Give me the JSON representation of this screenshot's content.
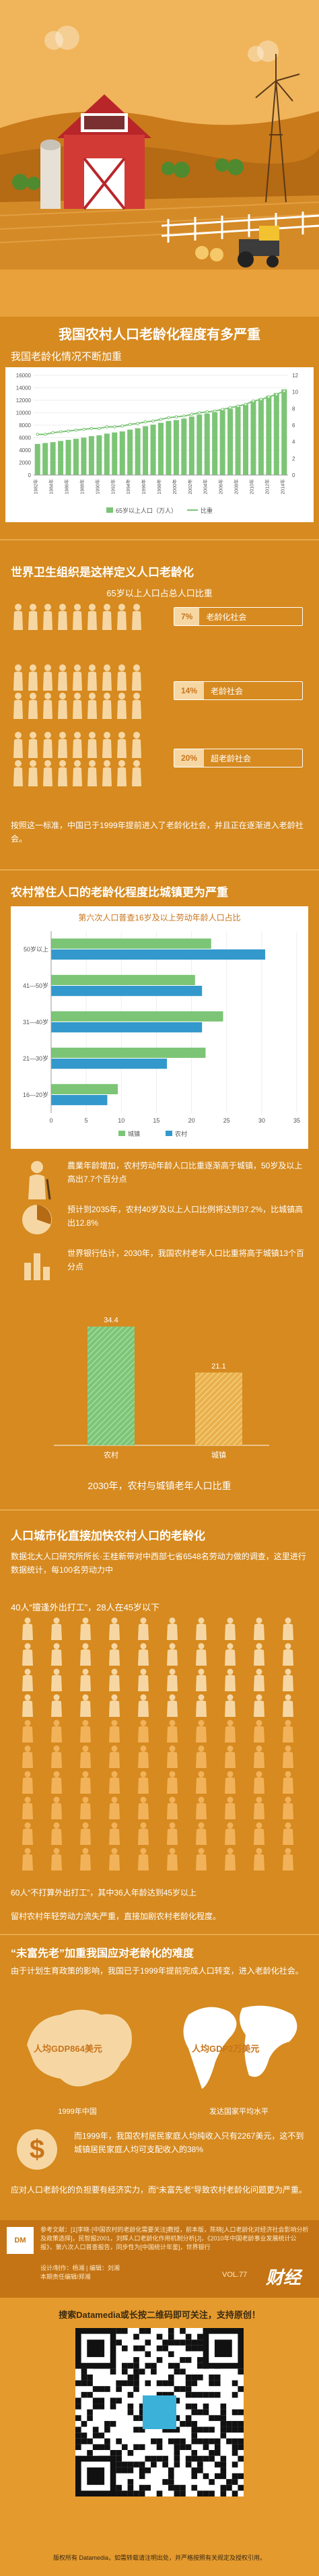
{
  "header": {
    "title": "我国农村人口老龄化程度有多严重"
  },
  "chart1": {
    "subtitle": "我国老龄化情况不断加重"
  },
  "who": {
    "title": "世界卫生组织是这样定义人口老龄化",
    "subtitle": "65岁以上人口占总人口比重",
    "levels": [
      {
        "pct": "7%",
        "label": "老龄化社会"
      },
      {
        "pct": "14%",
        "label": "老龄社会"
      },
      {
        "pct": "20%",
        "label": "超老龄社会"
      }
    ],
    "note": "按照这一标准，中国已于1999年提前进入了老龄化社会，并且正在逐渐进入老龄社会。"
  },
  "rural": {
    "title": "农村常住人口的老龄化程度比城镇更为严重",
    "chart_subtitle": "第六次人口普查16岁及以上劳动年龄人口占比",
    "stat1": "農業年龄增加，农村劳动年龄人口比重逐渐高于城镇，50岁及以上高出7.7个百分点",
    "stat2": "预计到2035年，农村40岁及以上人口比例将达到37.2%，比城镇高出12.8%",
    "stat3": "世界银行估计，2030年，我国农村老年人口比重将高于城镇13个百分点",
    "chart3_caption": "2030年，农村与城镇老年人口比重"
  },
  "migrant": {
    "title": "人口城市化直接加快农村人口的老龄化",
    "text": "数据北大人口研究所所长·王桂新带对中西部七省6548名劳动力做的调查，这里进行数据统计，每100名劳动力中",
    "line1": "40人“擅逢外出打工”，28人在45岁以下",
    "line2": "60人“不打算外出打工”，其中36人年龄达到45岁以上",
    "line3": "留村农村年轻劳动力流失严重，直接加剧农村老龄化程度。"
  },
  "gdp": {
    "title": "“未富先老”加重我国应对老龄化的难度",
    "text": "由于计划生育政策的影响，我国已于1999年提前完成人口转变，进入老龄化社会。",
    "left_label": "人均GDP864美元",
    "right_label": "人均GDP2万美元",
    "left_caption": "1999年中国",
    "right_caption": "发达国家平均水平",
    "stat": "而1999年，我国农村居民家庭人均纯收入只有2267美元，这不到城镇居民家庭人均可支配收入的38%",
    "conclusion": "应对人口老龄化的负担要有经济实力，而“未富先老”导致农村老龄化问题更为严重。"
  },
  "footer": {
    "source": "参考文献：[1]李晓·[中国农村的老龄化需要关注]教授，前本版，陈晓[人口老龄化对经济社会影响分析及政策选择]，民智报2001，刘辉人口老龄化作用机制分析[J]，《2010年中国老龄事业发展统计公报》，第六次人口普查报告，同步性为[中国统计年鉴]，世界银行",
    "credits": "设计/制作：杨湘 | 编辑：刘湘\n本期责任编辑/郑湘",
    "brand": "财经",
    "tag": "VOL.77",
    "qr_caption": "搜索Datamedia或长按二维码即可关注，支持原创！",
    "copyright": "版权所有 Datamedia，如需转载请注明出处，并严格按照有关规定及授权引用。"
  },
  "colors": {
    "background": "#d68a1f",
    "green": "#7cc576",
    "blue": "#3399cc",
    "cream": "#f6d7a4"
  },
  "chart_data": [
    {
      "type": "bar",
      "title": "",
      "categories": [
        "1982年",
        "1984年",
        "1986年",
        "1988年",
        "1990年",
        "1992年",
        "1994年",
        "1996年",
        "1998年",
        "2000年",
        "2002年",
        "2004年",
        "2006年",
        "2008年",
        "2010年",
        "2012年",
        "2014年"
      ],
      "x": [
        "1982",
        "1983",
        "1984",
        "1985",
        "1986",
        "1987",
        "1988",
        "1989",
        "1990",
        "1991",
        "1992",
        "1993",
        "1994",
        "1995",
        "1996",
        "1997",
        "1998",
        "1999",
        "2000",
        "2001",
        "2002",
        "2003",
        "2004",
        "2005",
        "2006",
        "2007",
        "2008",
        "2009",
        "2010",
        "2011",
        "2012",
        "2013",
        "2014"
      ],
      "series": [
        {
          "name": "65岁以上人口（万人）",
          "type": "bar",
          "axis": "left",
          "values": [
            4991,
            5140,
            5276,
            5464,
            5641,
            5817,
            6004,
            6240,
            6368,
            6647,
            6833,
            6997,
            7291,
            7510,
            7833,
            8085,
            8376,
            8679,
            8821,
            9062,
            9377,
            9692,
            9857,
            10055,
            10419,
            10636,
            10956,
            11307,
            11894,
            12288,
            12714,
            13161,
            13755
          ]
        },
        {
          "name": "比重",
          "type": "line",
          "axis": "right",
          "values": [
            4.9,
            4.9,
            5.1,
            5.2,
            5.3,
            5.4,
            5.5,
            5.6,
            5.6,
            5.8,
            5.8,
            5.9,
            6.1,
            6.2,
            6.4,
            6.5,
            6.7,
            6.9,
            7.0,
            7.1,
            7.3,
            7.5,
            7.6,
            7.7,
            7.9,
            8.1,
            8.3,
            8.5,
            8.9,
            9.1,
            9.4,
            9.7,
            10.1
          ]
        }
      ],
      "ylim_left": [
        0,
        16000
      ],
      "yticks_left": [
        0,
        2000,
        4000,
        6000,
        8000,
        10000,
        12000,
        14000,
        16000
      ],
      "ylim_right": [
        0,
        12
      ],
      "yticks_right": [
        0,
        2,
        4,
        6,
        8,
        10,
        12
      ],
      "legend": "bottom"
    },
    {
      "type": "bar",
      "orientation": "horizontal",
      "title": "第六次人口普查16岁及以上劳动年龄人口占比",
      "categories": [
        "50岁以上",
        "41—50岁",
        "31—40岁",
        "21—30岁",
        "16—20岁"
      ],
      "series": [
        {
          "name": "城镇",
          "values": [
            22.8,
            20.5,
            24.5,
            22.0,
            9.5
          ]
        },
        {
          "name": "农村",
          "values": [
            30.5,
            21.5,
            21.5,
            16.5,
            8.0
          ]
        }
      ],
      "xlim": [
        0,
        35
      ],
      "xticks": [
        0,
        5,
        10,
        15,
        20,
        25,
        30,
        35
      ],
      "legend": "bottom"
    },
    {
      "type": "bar",
      "title": "2030年，农村与城镇老年人口比重",
      "categories": [
        "农村",
        "城镇"
      ],
      "values": [
        34.4,
        21.1
      ],
      "ylim": [
        0,
        40
      ]
    }
  ]
}
